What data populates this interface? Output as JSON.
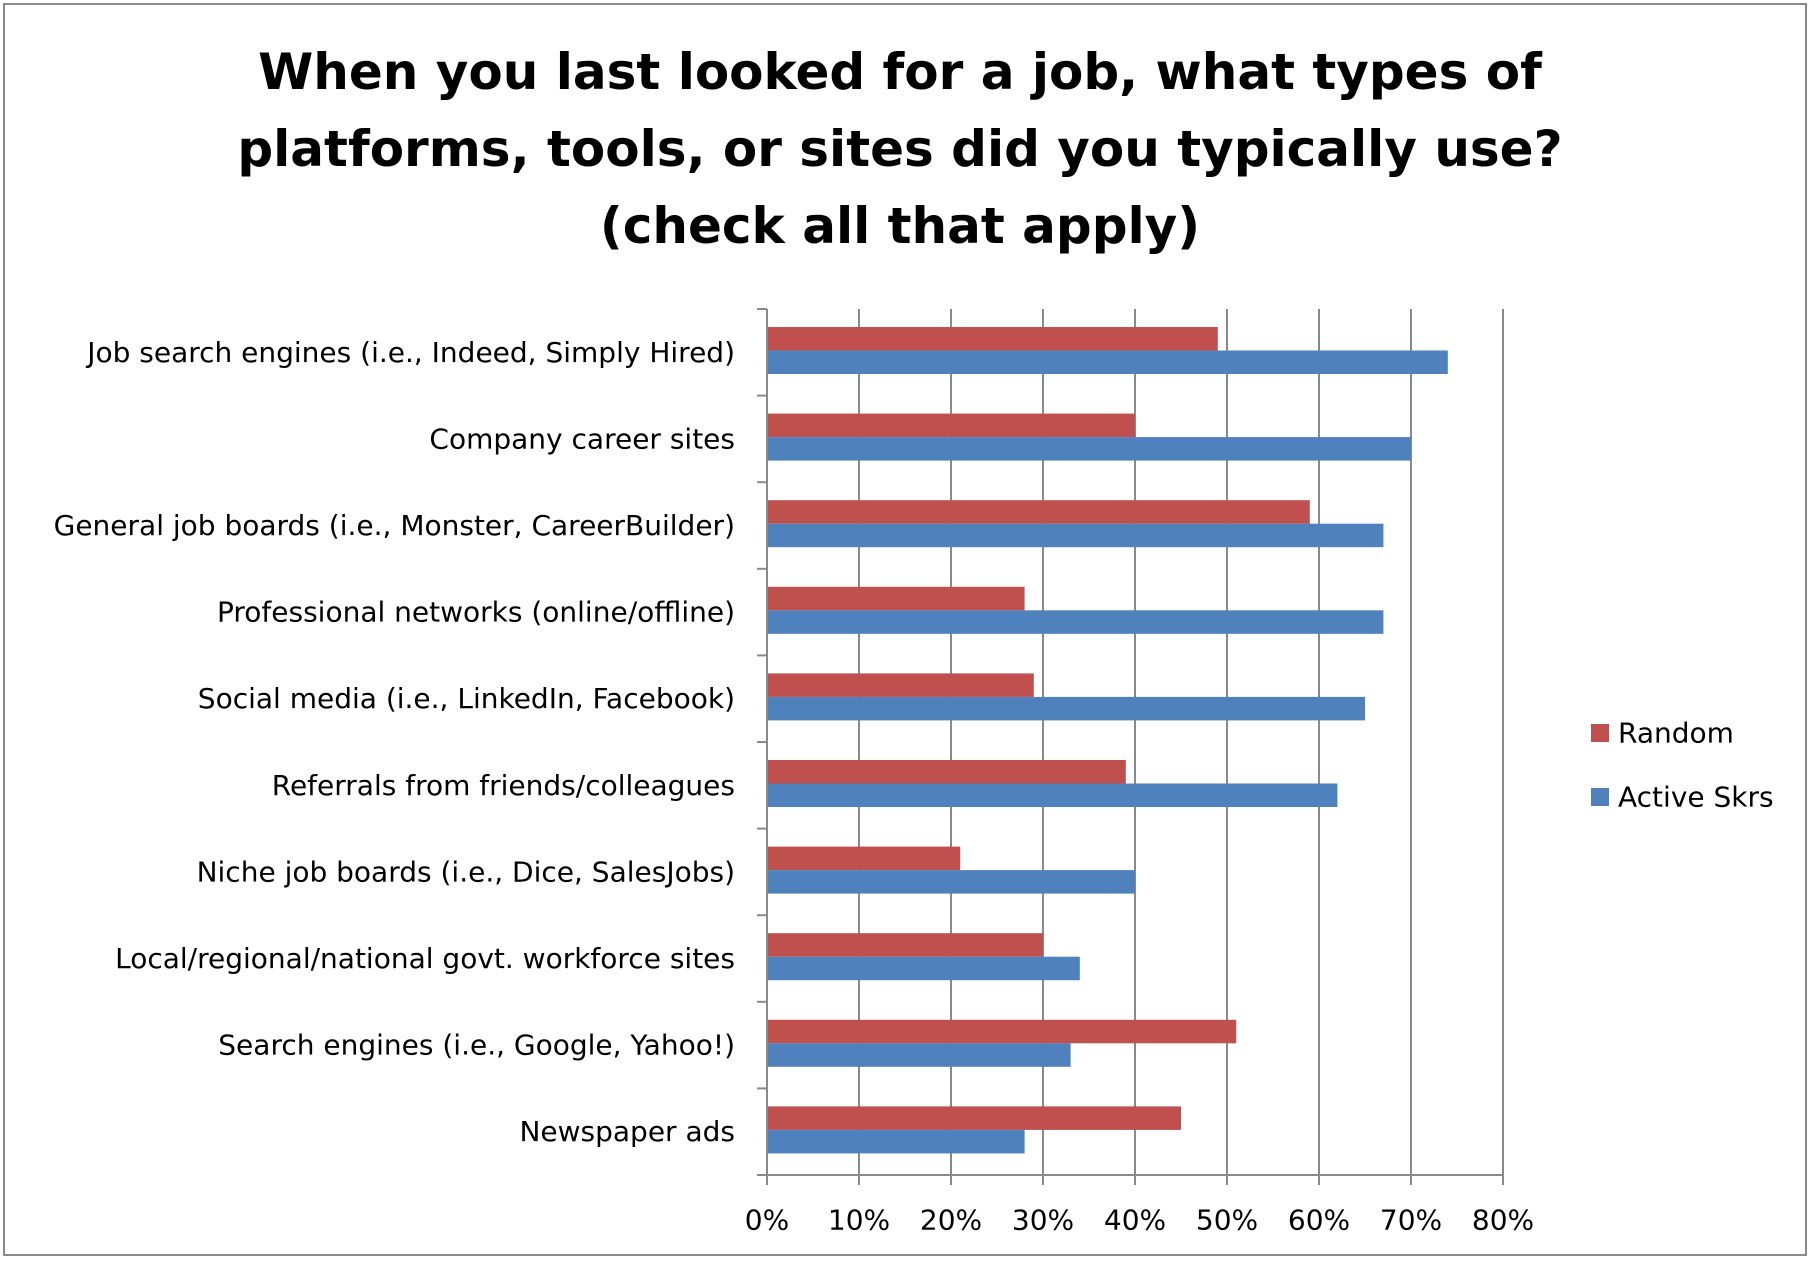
{
  "chart_data": {
    "type": "bar",
    "orientation": "horizontal",
    "title": "When you last looked for a job, what types of platforms, tools, or sites did you typically use? (check all that apply)",
    "categories": [
      "Job search engines (i.e., Indeed, Simply Hired)",
      "Company career sites",
      "General job boards (i.e., Monster, CareerBuilder)",
      "Professional networks (online/offline)",
      "Social media (i.e., LinkedIn, Facebook)",
      "Referrals from friends/colleagues",
      "Niche job boards (i.e., Dice, SalesJobs)",
      "Local/regional/national govt. workforce sites",
      "Search engines (i.e., Google, Yahoo!)",
      "Newspaper ads"
    ],
    "series": [
      {
        "name": "Random",
        "color": "#c0504d",
        "values": [
          49,
          40,
          59,
          28,
          29,
          39,
          21,
          30,
          51,
          45
        ]
      },
      {
        "name": "Active Skrs",
        "color": "#4f81bd",
        "values": [
          74,
          70,
          67,
          67,
          65,
          62,
          40,
          34,
          33,
          28
        ]
      }
    ],
    "x_ticks": [
      "0%",
      "10%",
      "20%",
      "30%",
      "40%",
      "50%",
      "60%",
      "70%",
      "80%"
    ],
    "xlim": [
      0,
      80
    ],
    "unit": "%",
    "grid": "vertical",
    "legend_position": "right"
  }
}
